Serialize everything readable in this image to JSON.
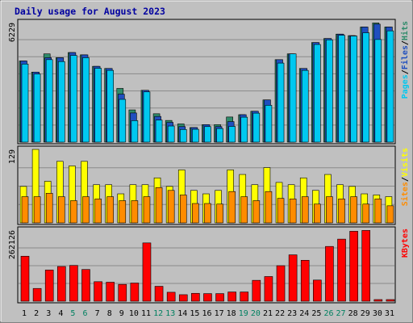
{
  "chart_data": {
    "type": "bar",
    "title": "Daily usage for August 2023",
    "categories": [
      "1",
      "2",
      "3",
      "4",
      "5",
      "6",
      "7",
      "8",
      "9",
      "10",
      "11",
      "12",
      "13",
      "14",
      "15",
      "16",
      "17",
      "18",
      "19",
      "20",
      "21",
      "22",
      "23",
      "24",
      "25",
      "26",
      "27",
      "28",
      "29",
      "30",
      "31"
    ],
    "weekend_days": [
      "5",
      "6",
      "12",
      "13",
      "19",
      "20",
      "26",
      "27"
    ],
    "panels": [
      {
        "id": "hits-files-pages",
        "max_label": "6229",
        "ymax": 6229,
        "legend": [
          "Pages",
          "/",
          "Files",
          "/",
          "Hits"
        ],
        "series": [
          {
            "name": "Hits",
            "color": "#2e8b6a",
            "values": [
              4230,
              3650,
              4600,
              4400,
              4670,
              4550,
              3950,
              3840,
              2800,
              1680,
              2700,
              1480,
              1130,
              950,
              760,
              910,
              910,
              1310,
              1430,
              1610,
              2200,
              4300,
              4600,
              3840,
              5190,
              5400,
              5630,
              5550,
              6000,
              6210,
              6000
            ]
          },
          {
            "name": "Files",
            "color": "#1f4fbf",
            "values": [
              4230,
              3650,
              4400,
              4400,
              4670,
              4550,
              3950,
              3840,
              2500,
              1520,
              2700,
              1340,
              1030,
              810,
              760,
              910,
              810,
              1070,
              1430,
              1610,
              2200,
              4300,
              4600,
              3840,
              5190,
              5400,
              5630,
              5550,
              6000,
              6150,
              6000
            ]
          },
          {
            "name": "Pages",
            "color": "#00c8f0",
            "values": [
              4070,
              3550,
              4300,
              4200,
              4520,
              4400,
              3850,
              3740,
              2230,
              1120,
              2620,
              1150,
              840,
              660,
              670,
              810,
              710,
              820,
              1300,
              1510,
              1920,
              4120,
              4600,
              3740,
              5090,
              5330,
              5570,
              5530,
              5700,
              5350,
              5800
            ]
          }
        ]
      },
      {
        "id": "visits-sites",
        "max_label": "129",
        "ymax": 129,
        "legend": [
          "Sites",
          "/",
          "Visits"
        ],
        "series": [
          {
            "name": "Visits",
            "color": "#ffff00",
            "values": [
              64,
              129,
              73,
              108,
              100,
              108,
              67,
              67,
              51,
              67,
              67,
              79,
              64,
              93,
              57,
              51,
              57,
              93,
              85,
              67,
              97,
              71,
              67,
              79,
              57,
              85,
              67,
              64,
              51,
              49,
              46
            ]
          },
          {
            "name": "Sites",
            "color": "#ff8c00",
            "values": [
              46,
              46,
              52,
              46,
              39,
              46,
              42,
              46,
              39,
              39,
              46,
              62,
              57,
              49,
              34,
              34,
              33,
              55,
              46,
              39,
              55,
              43,
              42,
              46,
              33,
              46,
              42,
              46,
              33,
              42,
              30
            ]
          }
        ]
      },
      {
        "id": "kbytes",
        "max_label": "262126",
        "ymax": 262126,
        "legend": [
          "KBytes"
        ],
        "series": [
          {
            "name": "KBytes",
            "color": "#ff0000",
            "values": [
              166000,
              47000,
              115000,
              128000,
              132000,
              117000,
              72000,
              70000,
              62000,
              67000,
              215000,
              55000,
              33000,
              24000,
              29000,
              28000,
              28000,
              34000,
              34000,
              77000,
              91000,
              131000,
              171000,
              151000,
              78000,
              202000,
              229000,
              258000,
              261000,
              6000,
              6000
            ]
          }
        ]
      }
    ]
  }
}
